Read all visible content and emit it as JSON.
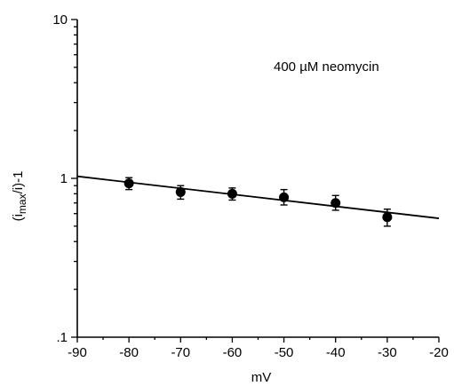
{
  "chart_data": {
    "type": "scatter",
    "title": "",
    "annotation": "400 µM neomycin",
    "xlabel": "mV",
    "ylabel_main": "(i",
    "ylabel_sub": "max",
    "ylabel_tail": "/i)-1",
    "xlim": [
      -90,
      -20
    ],
    "ylim": [
      0.1,
      10
    ],
    "yscale": "log",
    "xticks": [
      -90,
      -80,
      -70,
      -60,
      -50,
      -40,
      -30,
      -20
    ],
    "xtick_labels": [
      "-90",
      "-80",
      "-70",
      "-60",
      "-50",
      "-40",
      "-30",
      "-20"
    ],
    "yticks": [
      0.1,
      1,
      10
    ],
    "ytick_labels": [
      ".1",
      "1",
      "10"
    ],
    "grid": false,
    "series": [
      {
        "x": [
          -80,
          -70,
          -60,
          -50,
          -40,
          -30
        ],
        "y": [
          0.93,
          0.82,
          0.8,
          0.76,
          0.7,
          0.57
        ],
        "err_low": [
          0.85,
          0.74,
          0.73,
          0.68,
          0.63,
          0.5
        ],
        "err_high": [
          1.01,
          0.9,
          0.87,
          0.85,
          0.78,
          0.64
        ]
      }
    ],
    "fit_line": {
      "x": [
        -90,
        -20
      ],
      "y": [
        1.03,
        0.56
      ]
    }
  }
}
